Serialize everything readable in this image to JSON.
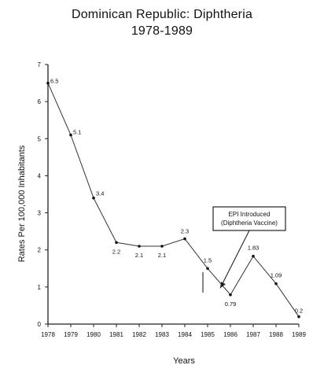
{
  "chart_data": {
    "type": "line",
    "title": "Dominican Republic: Diphtheria",
    "subtitle": "1978-1989",
    "xlabel": "Years",
    "ylabel": "Rates Per 100,000 Inhabitants",
    "categories": [
      "1978",
      "1979",
      "1980",
      "1981",
      "1982",
      "1983",
      "1984",
      "1985",
      "1986",
      "1987",
      "1988",
      "1989"
    ],
    "values": [
      6.5,
      5.1,
      3.4,
      2.2,
      2.1,
      2.1,
      2.3,
      1.5,
      0.79,
      1.83,
      1.09,
      0.2
    ],
    "data_labels": [
      "6.5",
      "5.1",
      "3.4",
      "2.2",
      "2.1",
      "2.1",
      "2.3",
      "1.5",
      "0.79",
      "1.83",
      "1.09",
      "0.2"
    ],
    "yticks": [
      "0",
      "1",
      "2",
      "3",
      "4",
      "5",
      "6",
      "7"
    ],
    "ylim": [
      0,
      7
    ],
    "grid": false,
    "annotation": {
      "lines": [
        "EPI Introduced",
        "(Diphtheria Vaccine)"
      ],
      "points_to_x": "1985"
    }
  }
}
